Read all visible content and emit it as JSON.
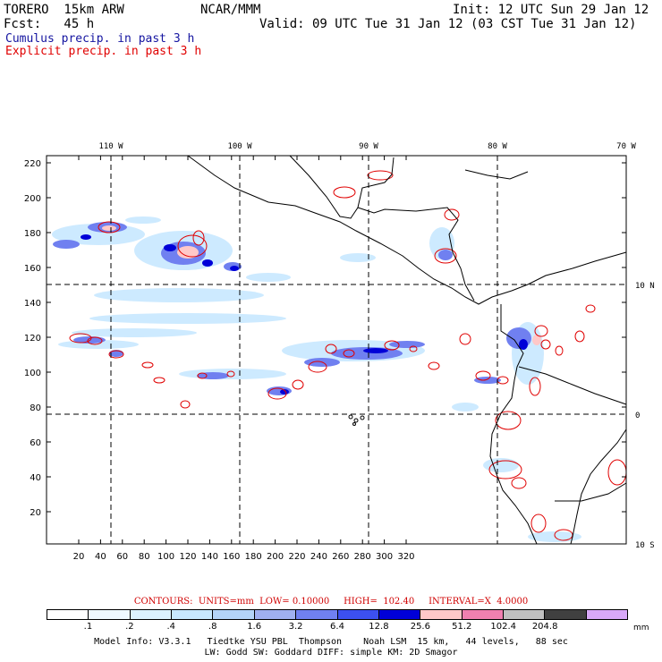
{
  "header": {
    "model": "TORERO  15km ARW",
    "center": "NCAR/MMM",
    "init": "Init: 12 UTC Sun 29 Jan 12",
    "fcst": "Fcst:   45 h",
    "valid": "Valid: 09 UTC Tue 31 Jan 12 (03 CST Tue 31 Jan 12)"
  },
  "legend": {
    "cumulus": "Cumulus precip. in past 3 h",
    "explicit": "Explicit precip. in past 3 h",
    "cumulus_color": "#1414a0",
    "explicit_color": "#e00000"
  },
  "map": {
    "x_ticks": [
      "20",
      "40",
      "60",
      "80",
      "100",
      "120",
      "140",
      "160",
      "180",
      "200",
      "220",
      "240",
      "260",
      "280",
      "300",
      "320"
    ],
    "y_ticks": [
      "20",
      "40",
      "60",
      "80",
      "100",
      "120",
      "140",
      "160",
      "180",
      "200",
      "220"
    ],
    "lon_labels": [
      "110 W",
      "100 W",
      "90 W",
      "80 W",
      "70 W"
    ],
    "lat_labels": [
      "10 N",
      "0",
      "10 S"
    ]
  },
  "contours": {
    "text": "CONTOURS:  UNITS=mm  LOW= 0.10000     HIGH=  102.40     INTERVAL=X  4.0000"
  },
  "colorbar": {
    "colors": [
      "#ffffff",
      "#eef8ff",
      "#dcf2ff",
      "#c8e8ff",
      "#b4d4f8",
      "#a0b0f0",
      "#7080f0",
      "#3c50f0",
      "#0000d8",
      "#ffc8c8",
      "#f080b0",
      "#c0c0c0",
      "#404040",
      "#d8a8f8"
    ],
    "labels": [
      ".1",
      ".2",
      ".4",
      ".8",
      "1.6",
      "3.2",
      "6.4",
      "12.8",
      "25.6",
      "51.2",
      "102.4",
      "204.8"
    ],
    "units": "mm"
  },
  "footer": {
    "line1": "Model Info: V3.3.1   Tiedtke YSU PBL  Thompson    Noah LSM  15 km,   44 levels,   88 sec",
    "line2": "LW: Godd SW: Goddard DIFF: simple KM: 2D Smagor"
  }
}
